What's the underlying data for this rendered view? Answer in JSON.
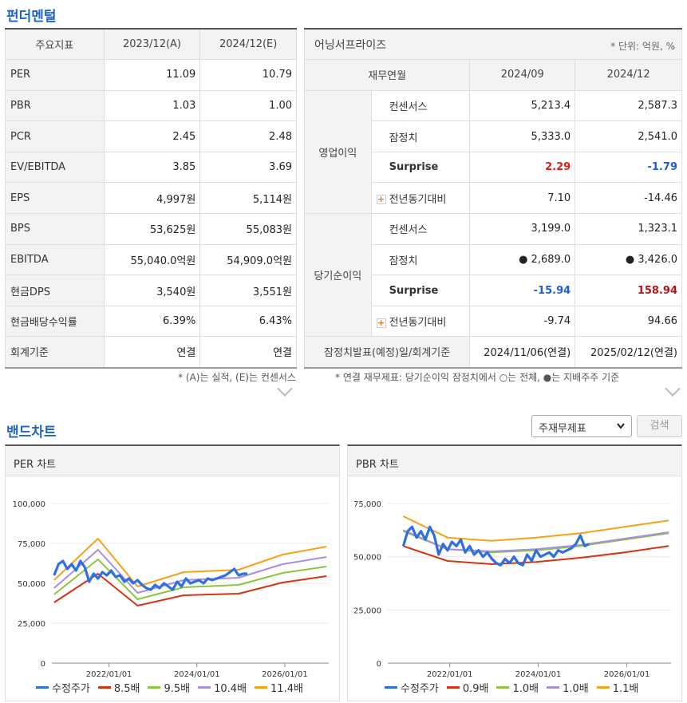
{
  "fundamentals": {
    "title": "펀더멘털",
    "headers": [
      "주요지표",
      "2023/12(A)",
      "2024/12(E)"
    ],
    "rows": [
      {
        "label": "PER",
        "a": "11.09",
        "e": "10.79"
      },
      {
        "label": "PBR",
        "a": "1.03",
        "e": "1.00"
      },
      {
        "label": "PCR",
        "a": "2.45",
        "e": "2.48"
      },
      {
        "label": "EV/EBITDA",
        "a": "3.85",
        "e": "3.69"
      },
      {
        "label": "EPS",
        "a": "4,997원",
        "e": "5,114원"
      },
      {
        "label": "BPS",
        "a": "53,625원",
        "e": "55,083원"
      },
      {
        "label": "EBITDA",
        "a": "55,040.0억원",
        "e": "54,909.0억원"
      },
      {
        "label": "현금DPS",
        "a": "3,540원",
        "e": "3,551원"
      },
      {
        "label": "현금배당수익률",
        "a": "6.39%",
        "e": "6.43%"
      },
      {
        "label": "회계기준",
        "a": "연결",
        "e": "연결"
      }
    ],
    "note": "* (A)는 실적, (E)는 컨센서스"
  },
  "surprise": {
    "title": "어닝서프라이즈",
    "unit": "* 단위: 억원, %",
    "headers": [
      "재무연월",
      "2024/09",
      "2024/12"
    ],
    "group1": "영업이익",
    "group2": "당기순이익",
    "op": {
      "consensus": {
        "label": "컨센서스",
        "v1": "5,213.4",
        "v2": "2,587.3"
      },
      "provisional": {
        "label": "잠정치",
        "v1": "5,333.0",
        "v2": "2,541.0"
      },
      "surprise": {
        "label": "Surprise",
        "v1": "2.29",
        "v2": "-1.79"
      },
      "yoy": {
        "label": "전년동기대비",
        "v1": "7.10",
        "v2": "-14.46"
      }
    },
    "net": {
      "consensus": {
        "label": "컨센서스",
        "v1": "3,199.0",
        "v2": "1,323.1"
      },
      "provisional": {
        "label": "잠정치",
        "v1": "2,689.0",
        "v2": "3,426.0"
      },
      "surprise": {
        "label": "Surprise",
        "v1": "-15.94",
        "v2": "158.94"
      },
      "yoy": {
        "label": "전년동기대비",
        "v1": "-9.74",
        "v2": "94.66"
      }
    },
    "footer": {
      "label": "잠정치발표(예정)일/회계기준",
      "v1": "2024/11/06(연결)",
      "v2": "2025/02/12(연결)"
    },
    "note": "* 연결 재무제표: 당기순이익 잠정치에서 ○는 전체, ●는 지배주주 기준"
  },
  "band": {
    "title": "밴드차트",
    "select_value": "주재무제표",
    "search_label": "검색"
  },
  "chart_data": [
    {
      "type": "line",
      "title": "PER 차트",
      "y_ticks": [
        "100,000",
        "75,000",
        "50,000",
        "25,000",
        "0"
      ],
      "x_ticks": [
        "2022/01/01",
        "2024/01/01",
        "2026/01/01"
      ],
      "ylim": [
        0,
        100000
      ],
      "xlim": [
        2020.7,
        2027.0
      ],
      "series": [
        {
          "name": "수정주가",
          "color": "#2f6fde",
          "width": 3.2,
          "x": [
            2020.75,
            2020.85,
            2020.95,
            2021.05,
            2021.15,
            2021.25,
            2021.35,
            2021.45,
            2021.55,
            2021.65,
            2021.75,
            2021.85,
            2021.95,
            2022.05,
            2022.15,
            2022.25,
            2022.35,
            2022.45,
            2022.55,
            2022.65,
            2022.75,
            2022.85,
            2022.95,
            2023.05,
            2023.15,
            2023.25,
            2023.35,
            2023.45,
            2023.55,
            2023.65,
            2023.75,
            2023.85,
            2023.95,
            2024.05,
            2024.15,
            2024.25,
            2024.35,
            2024.45,
            2024.55,
            2024.65,
            2024.75,
            2024.85,
            2024.95,
            2025.05,
            2025.15
          ],
          "y": [
            55000,
            62000,
            64000,
            59000,
            62000,
            58000,
            64000,
            60000,
            51000,
            56000,
            53000,
            57000,
            55000,
            58000,
            54000,
            55000,
            51000,
            53000,
            50000,
            52000,
            49000,
            47000,
            46000,
            49000,
            47000,
            50000,
            48000,
            46000,
            51000,
            48000,
            53000,
            50000,
            51000,
            52000,
            50000,
            53000,
            52000,
            53000,
            54000,
            55000,
            57000,
            59000,
            55000,
            56000,
            56000
          ]
        },
        {
          "name": "8.5배",
          "color": "#d4340f",
          "width": 2,
          "x": [
            2020.75,
            2021.75,
            2022.65,
            2023.7,
            2024.95,
            2025.95,
            2026.95
          ],
          "y": [
            38000,
            56000,
            36000,
            42500,
            43500,
            50500,
            54500
          ]
        },
        {
          "name": "9.5배",
          "color": "#8cc63f",
          "width": 2,
          "x": [
            2020.75,
            2021.75,
            2022.65,
            2023.7,
            2024.95,
            2025.95,
            2026.95
          ],
          "y": [
            43000,
            65000,
            40000,
            47500,
            49000,
            56500,
            60500
          ]
        },
        {
          "name": "10.4배",
          "color": "#a98ee0",
          "width": 2,
          "x": [
            2020.75,
            2021.75,
            2022.65,
            2023.7,
            2024.95,
            2025.95,
            2026.95
          ],
          "y": [
            47000,
            71000,
            44000,
            52000,
            53500,
            62000,
            66500
          ]
        },
        {
          "name": "11.4배",
          "color": "#f7a11a",
          "width": 2,
          "x": [
            2020.75,
            2021.75,
            2022.65,
            2023.7,
            2024.95,
            2025.95,
            2026.95
          ],
          "y": [
            52000,
            78000,
            48000,
            57000,
            58500,
            68000,
            73000
          ]
        }
      ]
    },
    {
      "type": "line",
      "title": "PBR 차트",
      "y_ticks": [
        "75,000",
        "50,000",
        "25,000",
        "0"
      ],
      "x_ticks": [
        "2022/01/01",
        "2024/01/01",
        "2026/01/01"
      ],
      "ylim": [
        0,
        75000
      ],
      "xlim": [
        2020.6,
        2027.0
      ],
      "series": [
        {
          "name": "수정주가",
          "color": "#2f6fde",
          "width": 3.2,
          "x": [
            2020.95,
            2021.05,
            2021.15,
            2021.25,
            2021.35,
            2021.45,
            2021.55,
            2021.65,
            2021.75,
            2021.85,
            2021.95,
            2022.05,
            2022.15,
            2022.25,
            2022.35,
            2022.45,
            2022.55,
            2022.65,
            2022.75,
            2022.85,
            2022.95,
            2023.05,
            2023.15,
            2023.25,
            2023.35,
            2023.45,
            2023.55,
            2023.65,
            2023.75,
            2023.85,
            2023.95,
            2024.05,
            2024.15,
            2024.25,
            2024.35,
            2024.45,
            2024.55,
            2024.65,
            2024.75,
            2024.85,
            2024.95,
            2025.05,
            2025.15
          ],
          "y": [
            55000,
            62000,
            64000,
            59000,
            62000,
            58000,
            64000,
            60000,
            51000,
            56000,
            53000,
            57000,
            55000,
            58000,
            52000,
            55000,
            51000,
            53000,
            50000,
            52000,
            49000,
            47000,
            46000,
            49000,
            47000,
            50000,
            47000,
            46000,
            51000,
            48000,
            53000,
            50000,
            51000,
            52000,
            50000,
            53000,
            52000,
            53000,
            54000,
            56000,
            60000,
            55000,
            56000
          ]
        },
        {
          "name": "0.9배",
          "color": "#d4340f",
          "width": 2,
          "x": [
            2020.95,
            2021.95,
            2022.95,
            2023.95,
            2024.95,
            2025.95,
            2026.95
          ],
          "y": [
            55000,
            48000,
            46500,
            47500,
            49500,
            52000,
            55000
          ]
        },
        {
          "name": "1.0배",
          "color": "#8cc63f",
          "width": 2,
          "x": [
            2020.95,
            2021.95,
            2022.95,
            2023.95,
            2024.95,
            2025.95,
            2026.95
          ],
          "y": [
            62000,
            53500,
            52000,
            53000,
            55000,
            58000,
            61000
          ]
        },
        {
          "name": "1.0배",
          "color": "#a98ee0",
          "width": 2,
          "x": [
            2020.95,
            2021.95,
            2022.95,
            2023.95,
            2024.95,
            2025.95,
            2026.95
          ],
          "y": [
            62500,
            53500,
            52500,
            53500,
            55500,
            58500,
            61500
          ]
        },
        {
          "name": "1.1배",
          "color": "#f7a11a",
          "width": 2,
          "x": [
            2020.95,
            2021.95,
            2022.95,
            2023.95,
            2024.95,
            2025.95,
            2026.95
          ],
          "y": [
            69000,
            59000,
            57500,
            59000,
            61000,
            64000,
            67000
          ]
        }
      ]
    }
  ]
}
